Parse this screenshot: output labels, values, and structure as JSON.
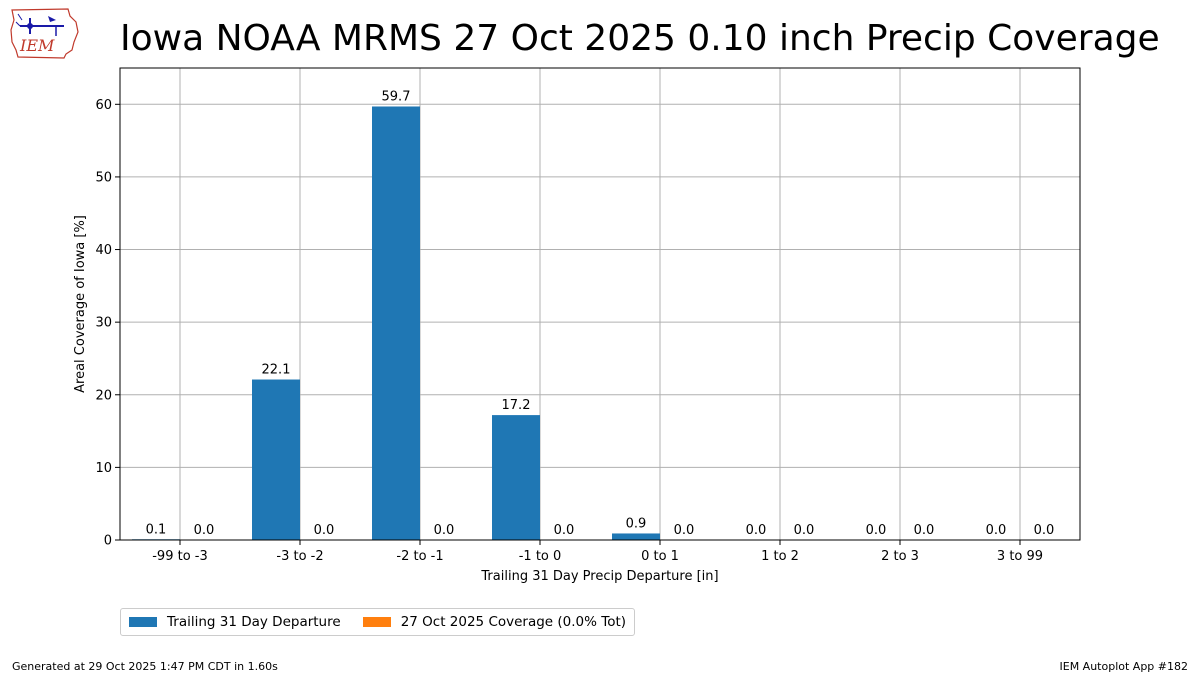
{
  "header": {
    "title": "Iowa NOAA MRMS 27 Oct 2025 0.10 inch Precip Coverage",
    "logo_text": "IEM"
  },
  "footer": {
    "left": "Generated at 29 Oct 2025 1:47 PM CDT in 1.60s",
    "right": "IEM Autoplot App #182"
  },
  "colors": {
    "series_0": "#1f77b4",
    "series_1": "#ff7f0e",
    "grid": "#b0b0b0"
  },
  "chart_data": {
    "type": "bar",
    "title": "Iowa NOAA MRMS 27 Oct 2025 0.10 inch Precip Coverage",
    "xlabel": "Trailing 31 Day Precip Departure [in]",
    "ylabel": "Areal Coverage of Iowa [%]",
    "ylim": [
      0,
      65
    ],
    "yticks": [
      0,
      10,
      20,
      30,
      40,
      50,
      60
    ],
    "grid": true,
    "legend_position": "below",
    "categories": [
      "-99 to -3",
      "-3 to -2",
      "-2 to -1",
      "-1 to 0",
      "0 to 1",
      "1 to 2",
      "2 to 3",
      "3 to 99"
    ],
    "series": [
      {
        "name": "Trailing 31 Day Departure",
        "values": [
          0.1,
          22.1,
          59.7,
          17.2,
          0.9,
          0.0,
          0.0,
          0.0
        ],
        "labels": [
          "0.1",
          "22.1",
          "59.7",
          "17.2",
          "0.9",
          "0.0",
          "0.0",
          "0.0"
        ]
      },
      {
        "name": "27 Oct 2025 Coverage (0.0% Tot)",
        "values": [
          0.0,
          0.0,
          0.0,
          0.0,
          0.0,
          0.0,
          0.0,
          0.0
        ],
        "labels": [
          "0.0",
          "0.0",
          "0.0",
          "0.0",
          "0.0",
          "0.0",
          "0.0",
          "0.0"
        ]
      }
    ]
  }
}
